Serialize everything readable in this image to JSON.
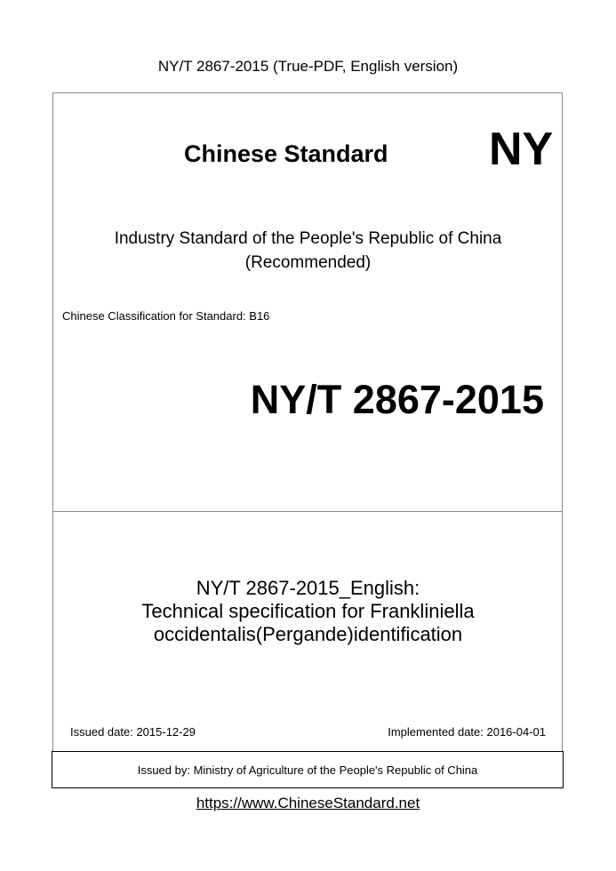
{
  "header": {
    "title": "NY/T 2867-2015 (True-PDF, English version)"
  },
  "cover": {
    "brand": "Chinese Standard",
    "code_prefix": "NY",
    "subtitle_line1": "Industry Standard of the People's Republic of China",
    "subtitle_line2": "(Recommended)",
    "classification": "Chinese Classification for Standard: B16",
    "standard_number": "NY/T 2867-2015",
    "title_line1": "NY/T 2867-2015_English:",
    "title_line2": "Technical specification for Frankliniella",
    "title_line3": "occidentalis(Pergande)identification",
    "issued_date": "Issued date: 2015-12-29",
    "implemented_date": "Implemented date: 2016-04-01",
    "issued_by": "Issued by: Ministry of Agriculture of the People's Republic of China"
  },
  "footer": {
    "url": "https://www.ChineseStandard.net"
  }
}
